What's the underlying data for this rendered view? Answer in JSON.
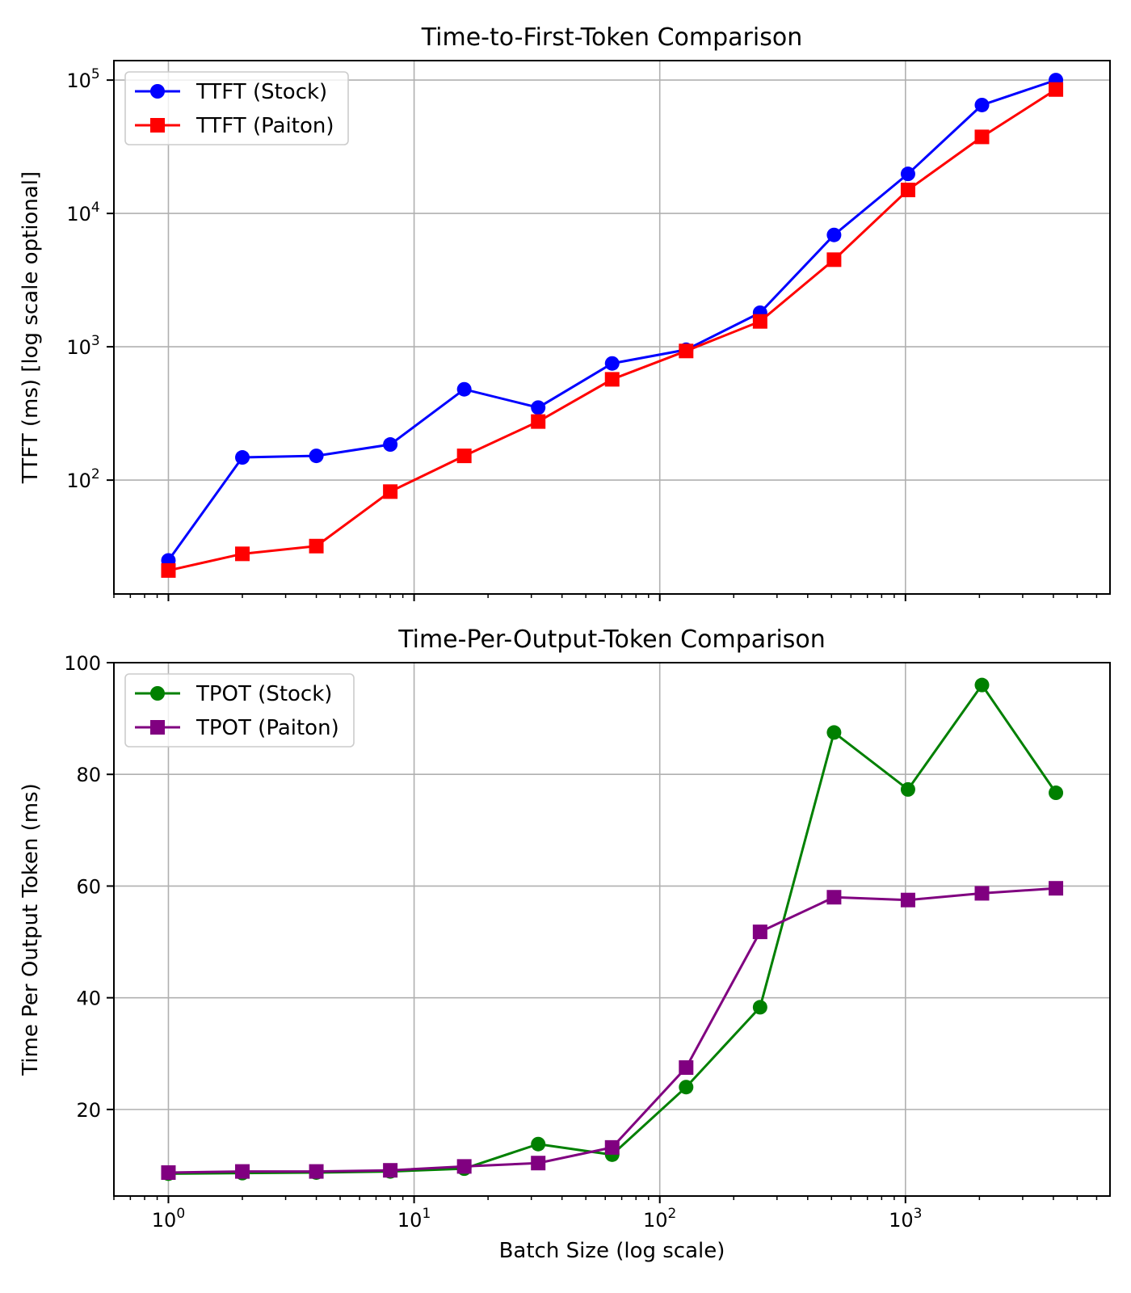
{
  "chart_data": [
    {
      "type": "line",
      "title": "Time-to-First-Token Comparison",
      "ylabel": "TTFT (ms) [log scale optional]",
      "xscale": "log",
      "yscale": "log",
      "x": [
        1,
        2,
        4,
        8,
        16,
        32,
        64,
        128,
        256,
        512,
        1024,
        2048,
        4096
      ],
      "ylim": [
        14,
        140000
      ],
      "yticks": [
        {
          "value": 100,
          "base": "10",
          "exp": "2"
        },
        {
          "value": 1000,
          "base": "10",
          "exp": "3"
        },
        {
          "value": 10000,
          "base": "10",
          "exp": "4"
        },
        {
          "value": 100000,
          "base": "10",
          "exp": "5"
        }
      ],
      "grid": true,
      "legend_position": "top-left",
      "series": [
        {
          "name": "TTFT (Stock)",
          "color": "#0000ff",
          "marker": "circle",
          "values": [
            25,
            148,
            152,
            185,
            480,
            350,
            750,
            950,
            1800,
            6900,
            19800,
            65000,
            100000
          ]
        },
        {
          "name": "TTFT (Paiton)",
          "color": "#ff0000",
          "marker": "square",
          "values": [
            21,
            28,
            32,
            82,
            152,
            275,
            570,
            930,
            1550,
            4500,
            15000,
            37500,
            85000
          ]
        }
      ]
    },
    {
      "type": "line",
      "title": "Time-Per-Output-Token Comparison",
      "xlabel": "Batch Size (log scale)",
      "ylabel": "Time Per Output Token (ms)",
      "xscale": "log",
      "yscale": "linear",
      "x": [
        1,
        2,
        4,
        8,
        16,
        32,
        64,
        128,
        256,
        512,
        1024,
        2048,
        4096
      ],
      "ylim": [
        4.5,
        100
      ],
      "yticks": [
        "20",
        "40",
        "60",
        "80",
        "100"
      ],
      "grid": true,
      "legend_position": "top-left",
      "series": [
        {
          "name": "TPOT (Stock)",
          "color": "#008000",
          "marker": "circle",
          "values": [
            8.5,
            8.6,
            8.7,
            8.9,
            9.4,
            13.8,
            11.9,
            24.0,
            38.3,
            87.5,
            77.3,
            96.0,
            76.7
          ]
        },
        {
          "name": "TPOT (Paiton)",
          "color": "#800080",
          "marker": "square",
          "values": [
            8.7,
            8.9,
            8.9,
            9.1,
            9.8,
            10.4,
            13.2,
            27.5,
            51.8,
            58.0,
            57.5,
            58.7,
            59.6
          ]
        }
      ]
    }
  ],
  "shared_xaxis": {
    "ticks": [
      {
        "value": 1,
        "base": "10",
        "exp": "0"
      },
      {
        "value": 10,
        "base": "10",
        "exp": "1"
      },
      {
        "value": 100,
        "base": "10",
        "exp": "2"
      },
      {
        "value": 1000,
        "base": "10",
        "exp": "3"
      }
    ],
    "xlim": [
      0.6,
      6800
    ]
  }
}
